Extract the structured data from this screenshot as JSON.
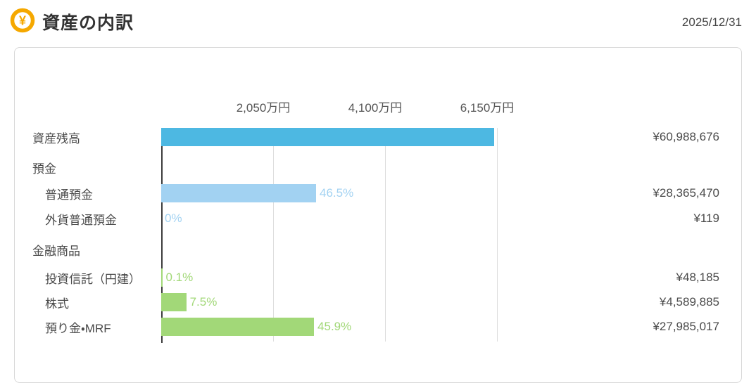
{
  "header": {
    "title": "資産の内訳",
    "date": "2025/12/31",
    "icon": "yen-coin-icon"
  },
  "colors": {
    "blue_dark": "#4db8e2",
    "blue_light": "#a2d2f2",
    "green": "#a2d878",
    "icon_orange": "#f5a800",
    "axis_line": "#3d3d3d",
    "gridline": "#dcdcdc"
  },
  "chart_data": {
    "type": "bar",
    "orientation": "horizontal",
    "title": "資産の内訳",
    "unit": "万円",
    "grid": true,
    "axis": {
      "min": 0,
      "ticks": [
        {
          "label": "2,050万円",
          "value": 2050
        },
        {
          "label": "4,100万円",
          "value": 4100
        },
        {
          "label": "6,150万円",
          "value": 6150
        }
      ]
    },
    "rows": [
      {
        "kind": "bar",
        "label": "資産残高",
        "indent": false,
        "value_man": 6098.8676,
        "amount": "¥60,988,676",
        "percent": "",
        "color": "blue_dark"
      },
      {
        "kind": "header",
        "label": "預金"
      },
      {
        "kind": "bar",
        "label": "普通預金",
        "indent": true,
        "value_man": 2836.547,
        "amount": "¥28,365,470",
        "percent": "46.5%",
        "color": "blue_light"
      },
      {
        "kind": "bar",
        "label": "外貨普通預金",
        "indent": true,
        "value_man": 0.0119,
        "amount": "¥119",
        "percent": "0%",
        "color": "blue_light"
      },
      {
        "kind": "header",
        "label": "金融商品"
      },
      {
        "kind": "bar",
        "label": "投資信託（円建）",
        "indent": true,
        "value_man": 4.8185,
        "amount": "¥48,185",
        "percent": "0.1%",
        "color": "green"
      },
      {
        "kind": "bar",
        "label": "株式",
        "indent": true,
        "value_man": 458.9885,
        "amount": "¥4,589,885",
        "percent": "7.5%",
        "color": "green"
      },
      {
        "kind": "bar",
        "label": "預り金・MRF",
        "indent": true,
        "value_man": 2798.5017,
        "amount": "¥27,985,017",
        "percent": "45.9%",
        "color": "green"
      }
    ]
  }
}
